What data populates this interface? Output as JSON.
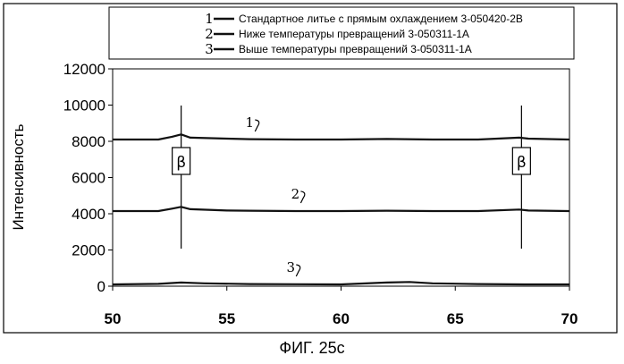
{
  "figure": {
    "caption": "ФИГ. 25c"
  },
  "chart_data": {
    "type": "line",
    "xlabel": "",
    "ylabel": "Интенсивность",
    "xlim": [
      50,
      70
    ],
    "ylim": [
      0,
      12000
    ],
    "x_ticks": [
      50,
      55,
      60,
      65,
      70
    ],
    "y_ticks": [
      0,
      2000,
      4000,
      6000,
      8000,
      10000,
      12000
    ],
    "legend_position": "top",
    "series": [
      {
        "id": "1",
        "label": "1",
        "name": "Стандартное литье с прямым охлаждением 3-050420-2B",
        "x": [
          50,
          52,
          52.6,
          53,
          53.4,
          55,
          56,
          58,
          60,
          62,
          64,
          66,
          67.8,
          68.2,
          70
        ],
        "y": [
          8100,
          8100,
          8250,
          8380,
          8200,
          8150,
          8120,
          8100,
          8100,
          8130,
          8100,
          8100,
          8200,
          8150,
          8100
        ]
      },
      {
        "id": "2",
        "label": "2",
        "name": "Ниже температуры превращений 3-050311-1A",
        "x": [
          50,
          52,
          52.6,
          53,
          53.4,
          55,
          56,
          58,
          60,
          62,
          64,
          66,
          67.8,
          68.2,
          70
        ],
        "y": [
          4150,
          4150,
          4280,
          4380,
          4250,
          4180,
          4170,
          4150,
          4150,
          4170,
          4150,
          4150,
          4230,
          4180,
          4150
        ]
      },
      {
        "id": "3",
        "label": "3",
        "name": "Выше температуры превращений 3-050311-1A",
        "x": [
          50,
          52,
          53,
          54,
          56,
          58,
          60,
          62,
          63,
          64,
          66,
          68,
          70
        ],
        "y": [
          100,
          130,
          200,
          160,
          120,
          110,
          100,
          200,
          230,
          160,
          120,
          100,
          100
        ]
      }
    ],
    "annotations": [
      {
        "label": "β",
        "x": 53
      },
      {
        "label": "β",
        "x": 67.9
      }
    ]
  }
}
